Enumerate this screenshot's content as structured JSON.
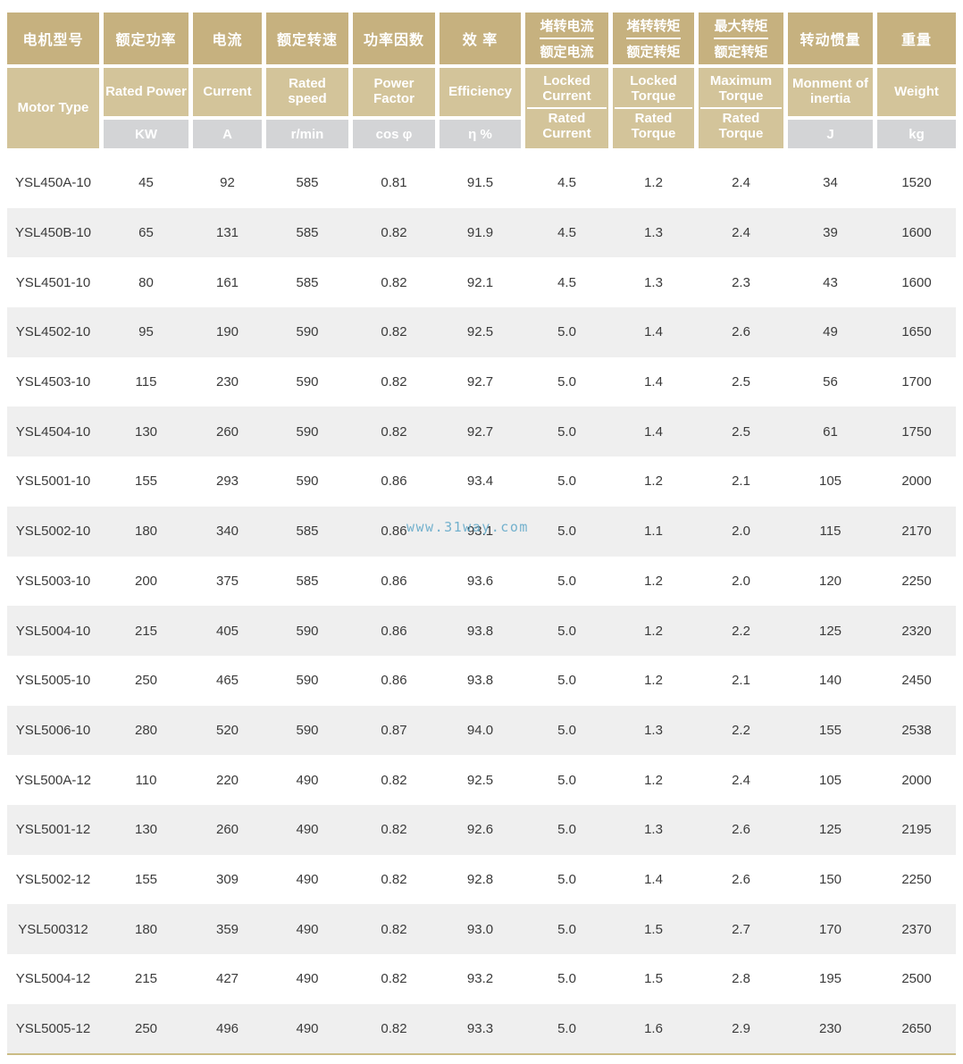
{
  "table": {
    "columns": [
      {
        "zh": "电机型号",
        "en": "Motor Type"
      },
      {
        "zh": "额定功率",
        "en": "Rated Power",
        "unit": "KW"
      },
      {
        "zh": "电流",
        "en": "Current",
        "unit": "A"
      },
      {
        "zh": "额定转速",
        "en": "Rated speed",
        "unit": "r/min"
      },
      {
        "zh": "功率因数",
        "en": "Power Factor",
        "unit": "cos φ"
      },
      {
        "zh": "效 率",
        "en": "Efficiency",
        "unit": "η %"
      },
      {
        "zh_top": "堵转电流",
        "zh_bottom": "额定电流",
        "en_top": "Locked Current",
        "en_bottom": "Rated Current"
      },
      {
        "zh_top": "堵转转矩",
        "zh_bottom": "额定转矩",
        "en_top": "Locked Torque",
        "en_bottom": "Rated Torque"
      },
      {
        "zh_top": "最大转矩",
        "zh_bottom": "额定转矩",
        "en_top": "Maximum Torque",
        "en_bottom": "Rated Torque"
      },
      {
        "zh": "转动惯量",
        "en": "Monment of inertia",
        "unit": "J"
      },
      {
        "zh": "重量",
        "en": "Weight",
        "unit": "kg"
      }
    ],
    "rows": [
      [
        "YSL450A-10",
        "45",
        "92",
        "585",
        "0.81",
        "91.5",
        "4.5",
        "1.2",
        "2.4",
        "34",
        "1520"
      ],
      [
        "YSL450B-10",
        "65",
        "131",
        "585",
        "0.82",
        "91.9",
        "4.5",
        "1.3",
        "2.4",
        "39",
        "1600"
      ],
      [
        "YSL4501-10",
        "80",
        "161",
        "585",
        "0.82",
        "92.1",
        "4.5",
        "1.3",
        "2.3",
        "43",
        "1600"
      ],
      [
        "YSL4502-10",
        "95",
        "190",
        "590",
        "0.82",
        "92.5",
        "5.0",
        "1.4",
        "2.6",
        "49",
        "1650"
      ],
      [
        "YSL4503-10",
        "115",
        "230",
        "590",
        "0.82",
        "92.7",
        "5.0",
        "1.4",
        "2.5",
        "56",
        "1700"
      ],
      [
        "YSL4504-10",
        "130",
        "260",
        "590",
        "0.82",
        "92.7",
        "5.0",
        "1.4",
        "2.5",
        "61",
        "1750"
      ],
      [
        "YSL5001-10",
        "155",
        "293",
        "590",
        "0.86",
        "93.4",
        "5.0",
        "1.2",
        "2.1",
        "105",
        "2000"
      ],
      [
        "YSL5002-10",
        "180",
        "340",
        "585",
        "0.86",
        "93.1",
        "5.0",
        "1.1",
        "2.0",
        "115",
        "2170"
      ],
      [
        "YSL5003-10",
        "200",
        "375",
        "585",
        "0.86",
        "93.6",
        "5.0",
        "1.2",
        "2.0",
        "120",
        "2250"
      ],
      [
        "YSL5004-10",
        "215",
        "405",
        "590",
        "0.86",
        "93.8",
        "5.0",
        "1.2",
        "2.2",
        "125",
        "2320"
      ],
      [
        "YSL5005-10",
        "250",
        "465",
        "590",
        "0.86",
        "93.8",
        "5.0",
        "1.2",
        "2.1",
        "140",
        "2450"
      ],
      [
        "YSL5006-10",
        "280",
        "520",
        "590",
        "0.87",
        "94.0",
        "5.0",
        "1.3",
        "2.2",
        "155",
        "2538"
      ],
      [
        "YSL500A-12",
        "110",
        "220",
        "490",
        "0.82",
        "92.5",
        "5.0",
        "1.2",
        "2.4",
        "105",
        "2000"
      ],
      [
        "YSL5001-12",
        "130",
        "260",
        "490",
        "0.82",
        "92.6",
        "5.0",
        "1.3",
        "2.6",
        "125",
        "2195"
      ],
      [
        "YSL5002-12",
        "155",
        "309",
        "490",
        "0.82",
        "92.8",
        "5.0",
        "1.4",
        "2.6",
        "150",
        "2250"
      ],
      [
        "YSL500312",
        "180",
        "359",
        "490",
        "0.82",
        "93.0",
        "5.0",
        "1.5",
        "2.7",
        "170",
        "2370"
      ],
      [
        "YSL5004-12",
        "215",
        "427",
        "490",
        "0.82",
        "93.2",
        "5.0",
        "1.5",
        "2.8",
        "195",
        "2500"
      ],
      [
        "YSL5005-12",
        "250",
        "496",
        "490",
        "0.82",
        "93.3",
        "5.0",
        "1.6",
        "2.9",
        "230",
        "2650"
      ]
    ]
  },
  "watermark": {
    "text": "www.31way.com",
    "color": "#62A8C8"
  },
  "colors": {
    "header_tan": "#C6B17F",
    "header_light_tan": "#D3C49A",
    "unit_gray": "#D3D4D6",
    "stripe_gray": "#EFEFEF",
    "bottom_line": "#CBBC85",
    "body_text": "#3B3B3B"
  }
}
